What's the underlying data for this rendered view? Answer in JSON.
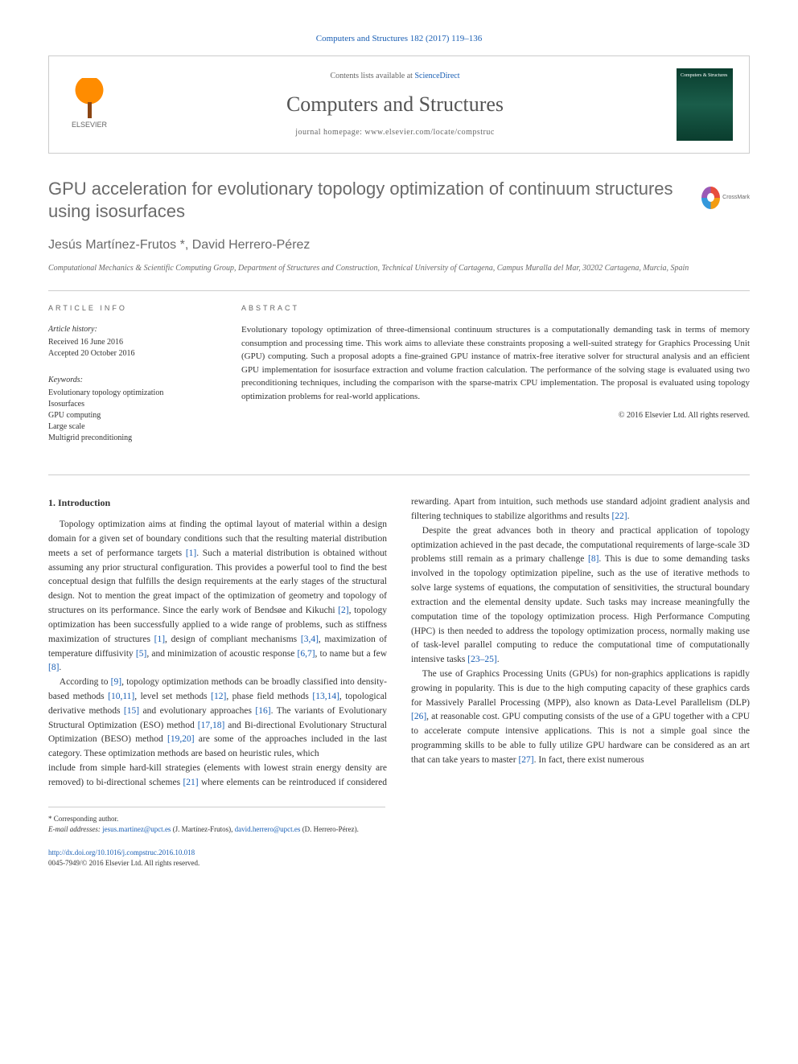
{
  "header": {
    "citation": "Computers and Structures 182 (2017) 119–136",
    "contents_prefix": "Contents lists available at ",
    "contents_link": "ScienceDirect",
    "journal_title": "Computers and Structures",
    "homepage_prefix": "journal homepage: ",
    "homepage_url": "www.elsevier.com/locate/compstruc",
    "publisher": "ELSEVIER",
    "cover_text": "Computers & Structures",
    "crossmark": "CrossMark"
  },
  "article": {
    "title": "GPU acceleration for evolutionary topology optimization of continuum structures using isosurfaces",
    "authors": "Jesús Martínez-Frutos *, David Herrero-Pérez",
    "affiliation": "Computational Mechanics & Scientific Computing Group, Department of Structures and Construction, Technical University of Cartagena, Campus Muralla del Mar, 30202 Cartagena, Murcia, Spain"
  },
  "info": {
    "section_label": "ARTICLE INFO",
    "history_head": "Article history:",
    "received": "Received 16 June 2016",
    "accepted": "Accepted 20 October 2016",
    "keywords_head": "Keywords:",
    "kw1": "Evolutionary topology optimization",
    "kw2": "Isosurfaces",
    "kw3": "GPU computing",
    "kw4": "Large scale",
    "kw5": "Multigrid preconditioning"
  },
  "abstract": {
    "section_label": "ABSTRACT",
    "text": "Evolutionary topology optimization of three-dimensional continuum structures is a computationally demanding task in terms of memory consumption and processing time. This work aims to alleviate these constraints proposing a well-suited strategy for Graphics Processing Unit (GPU) computing. Such a proposal adopts a fine-grained GPU instance of matrix-free iterative solver for structural analysis and an efficient GPU implementation for isosurface extraction and volume fraction calculation. The performance of the solving stage is evaluated using two preconditioning techniques, including the comparison with the sparse-matrix CPU implementation. The proposal is evaluated using topology optimization problems for real-world applications.",
    "copyright": "© 2016 Elsevier Ltd. All rights reserved."
  },
  "body": {
    "heading": "1. Introduction",
    "p1a": "Topology optimization aims at finding the optimal layout of material within a design domain for a given set of boundary conditions such that the resulting material distribution meets a set of performance targets ",
    "ref1": "[1]",
    "p1b": ". Such a material distribution is obtained without assuming any prior structural configuration. This provides a powerful tool to find the best conceptual design that fulfills the design requirements at the early stages of the structural design. Not to mention the great impact of the optimization of geometry and topology of structures on its performance. Since the early work of Bendsøe and Kikuchi ",
    "ref2": "[2]",
    "p1c": ", topology optimization has been successfully applied to a wide range of problems, such as stiffness maximization of structures ",
    "ref1b": "[1]",
    "p1d": ", design of compliant mechanisms ",
    "ref34": "[3,4]",
    "p1e": ", maximization of temperature diffusivity ",
    "ref5": "[5]",
    "p1f": ", and minimization of acoustic response ",
    "ref67": "[6,7]",
    "p1g": ", to name but a few ",
    "ref8": "[8]",
    "p1h": ".",
    "p2a": "According to ",
    "ref9": "[9]",
    "p2b": ", topology optimization methods can be broadly classified into density-based methods ",
    "ref1011": "[10,11]",
    "p2c": ", level set methods ",
    "ref12": "[12]",
    "p2d": ", phase field methods ",
    "ref1314": "[13,14]",
    "p2e": ", topological derivative methods ",
    "ref15": "[15]",
    "p2f": " and evolutionary approaches ",
    "ref16": "[16]",
    "p2g": ". The variants of Evolutionary Structural Optimization (ESO) method ",
    "ref1718": "[17,18]",
    "p2h": " and Bi-directional Evolutionary Structural Optimization (BESO) method ",
    "ref1920": "[19,20]",
    "p2i": " are some of the approaches included in the last category. These optimization methods are based on heuristic rules, which ",
    "p3a": "include from simple hard-kill strategies (elements with lowest strain energy density are removed) to bi-directional schemes ",
    "ref21": "[21]",
    "p3b": " where elements can be reintroduced if considered rewarding. Apart from intuition, such methods use standard adjoint gradient analysis and filtering techniques to stabilize algorithms and results ",
    "ref22": "[22]",
    "p3c": ".",
    "p4a": "Despite the great advances both in theory and practical application of topology optimization achieved in the past decade, the computational requirements of large-scale 3D problems still remain as a primary challenge ",
    "ref8b": "[8]",
    "p4b": ". This is due to some demanding tasks involved in the topology optimization pipeline, such as the use of iterative methods to solve large systems of equations, the computation of sensitivities, the structural boundary extraction and the elemental density update. Such tasks may increase meaningfully the computation time of the topology optimization process. High Performance Computing (HPC) is then needed to address the topology optimization process, normally making use of task-level parallel computing to reduce the computational time of computationally intensive tasks ",
    "ref2325": "[23–25]",
    "p4c": ".",
    "p5a": "The use of Graphics Processing Units (GPUs) for non-graphics applications is rapidly growing in popularity. This is due to the high computing capacity of these graphics cards for Massively Parallel Processing (MPP), also known as Data-Level Parallelism (DLP) ",
    "ref26": "[26]",
    "p5b": ", at reasonable cost. GPU computing consists of the use of a GPU together with a CPU to accelerate compute intensive applications. This is not a simple goal since the programming skills to be able to fully utilize GPU hardware can be considered as an art that can take years to master ",
    "ref27": "[27]",
    "p5c": ". In fact, there exist numerous"
  },
  "footnotes": {
    "corr": "* Corresponding author.",
    "email_label": "E-mail addresses: ",
    "email1": "jesus.martinez@upct.es",
    "email1_name": " (J. Martínez-Frutos), ",
    "email2": "david.herrero@upct.es",
    "email2_name": " (D. Herrero-Pérez)."
  },
  "footer": {
    "doi": "http://dx.doi.org/10.1016/j.compstruc.2016.10.018",
    "issn": "0045-7949/© 2016 Elsevier Ltd. All rights reserved."
  }
}
